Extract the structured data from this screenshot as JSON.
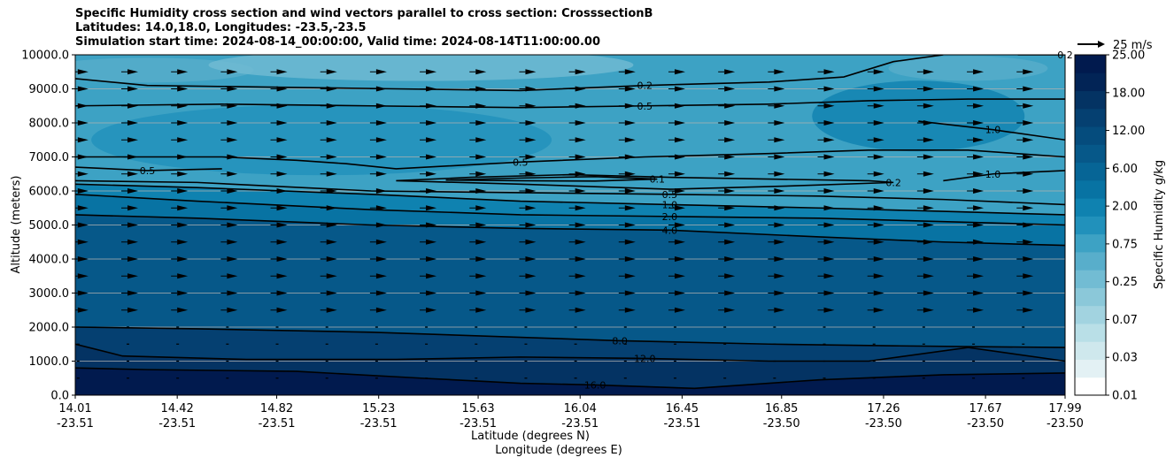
{
  "chart_data": {
    "type": "contour",
    "title_lines": [
      "Specific Humidity cross section and wind vectors parallel to cross section: CrosssectionB",
      "Latitudes: 14.0,18.0, Longitudes: -23.5,-23.5",
      "Simulation start time: 2024-08-14_00:00:00, Valid time: 2024-08-14T11:00:00.00"
    ],
    "xlabel_lat": "Latitude (degrees N)",
    "xlabel_lon": "Longitude (degrees E)",
    "ylabel": "Altitude (meters)",
    "x_lat_ticks": [
      "14.01",
      "14.42",
      "14.82",
      "15.23",
      "15.63",
      "16.04",
      "16.45",
      "16.85",
      "17.26",
      "17.67",
      "17.99"
    ],
    "x_lon_ticks": [
      "-23.51",
      "-23.51",
      "-23.51",
      "-23.51",
      "-23.51",
      "-23.51",
      "-23.51",
      "-23.50",
      "-23.50",
      "-23.50",
      "-23.50"
    ],
    "xlim": [
      14.01,
      17.99
    ],
    "ylim": [
      0,
      10000
    ],
    "y_ticks": [
      "0.0",
      "1000.0",
      "2000.0",
      "3000.0",
      "4000.0",
      "5000.0",
      "6000.0",
      "7000.0",
      "8000.0",
      "9000.0",
      "10000.0"
    ],
    "y_tick_values": [
      0,
      1000,
      2000,
      3000,
      4000,
      5000,
      6000,
      7000,
      8000,
      9000,
      10000
    ],
    "grid": "horizontal",
    "colorbar": {
      "label": "Specific Humidity g/kg",
      "tick_labels": [
        "0.01",
        "0.03",
        "0.07",
        "0.25",
        "0.75",
        "2.00",
        "6.00",
        "12.00",
        "18.00",
        "25.00"
      ],
      "levels": [
        0.01,
        0.02,
        0.03,
        0.05,
        0.07,
        0.1,
        0.25,
        0.5,
        0.75,
        1.0,
        2.0,
        4.0,
        6.0,
        8.0,
        12.0,
        16.0,
        18.0,
        20.0,
        25.0
      ],
      "colors": [
        "#ffffff",
        "#e3f1f4",
        "#cfe8ed",
        "#b9dfe7",
        "#a2d3e0",
        "#8bc8d9",
        "#72bcd3",
        "#58aecb",
        "#3da2c4",
        "#2191bb",
        "#0f82b0",
        "#0873a3",
        "#066596",
        "#065889",
        "#054c7d",
        "#054071",
        "#043363",
        "#022456",
        "#011a4e"
      ]
    },
    "quiver_key": "25 m/s",
    "contours": [
      {
        "label": "16.0",
        "level": 16.0,
        "points": [
          [
            14.01,
            800
          ],
          [
            14.3,
            750
          ],
          [
            14.9,
            700
          ],
          [
            15.4,
            500
          ],
          [
            15.8,
            350
          ],
          [
            16.1,
            300
          ],
          [
            16.5,
            200
          ],
          [
            17.0,
            450
          ],
          [
            17.5,
            600
          ],
          [
            17.99,
            650
          ]
        ]
      },
      {
        "label": "12.0",
        "level": 12.0,
        "points": [
          [
            14.01,
            1500
          ],
          [
            14.2,
            1150
          ],
          [
            14.7,
            1050
          ],
          [
            15.3,
            1050
          ],
          [
            15.8,
            1120
          ],
          [
            16.3,
            1080
          ],
          [
            16.8,
            1000
          ],
          [
            17.2,
            1000
          ],
          [
            17.6,
            1400
          ],
          [
            17.99,
            1000
          ]
        ]
      },
      {
        "label": "8.0",
        "level": 8.0,
        "points": [
          [
            14.01,
            2000
          ],
          [
            14.5,
            1950
          ],
          [
            15.2,
            1850
          ],
          [
            15.8,
            1700
          ],
          [
            16.2,
            1600
          ],
          [
            16.8,
            1500
          ],
          [
            17.3,
            1450
          ],
          [
            17.99,
            1400
          ]
        ]
      },
      {
        "label": "4.0",
        "level": 4.0,
        "points": [
          [
            14.01,
            5300
          ],
          [
            14.5,
            5200
          ],
          [
            15.2,
            5000
          ],
          [
            15.8,
            4900
          ],
          [
            16.4,
            4850
          ],
          [
            17.0,
            4650
          ],
          [
            17.5,
            4500
          ],
          [
            17.99,
            4400
          ]
        ]
      },
      {
        "label": "2.0",
        "level": 2.0,
        "points": [
          [
            14.01,
            5900
          ],
          [
            14.5,
            5700
          ],
          [
            15.2,
            5450
          ],
          [
            15.8,
            5300
          ],
          [
            16.4,
            5250
          ],
          [
            17.0,
            5200
          ],
          [
            17.5,
            5100
          ],
          [
            17.99,
            5000
          ]
        ]
      },
      {
        "label": "1.0",
        "level": 1.0,
        "points": [
          [
            14.01,
            6200
          ],
          [
            14.5,
            6100
          ],
          [
            15.2,
            5900
          ],
          [
            15.8,
            5700
          ],
          [
            16.4,
            5600
          ],
          [
            17.0,
            5500
          ],
          [
            17.5,
            5400
          ],
          [
            17.99,
            5300
          ]
        ]
      },
      {
        "label": "0.5",
        "level": 0.5,
        "points": [
          [
            14.01,
            6300
          ],
          [
            14.5,
            6250
          ],
          [
            15.2,
            6000
          ],
          [
            15.8,
            5950
          ],
          [
            16.4,
            5900
          ],
          [
            17.0,
            5850
          ],
          [
            17.5,
            5750
          ],
          [
            17.99,
            5600
          ]
        ]
      },
      {
        "label": "0.2",
        "level": 0.2,
        "points": [
          [
            15.3,
            6300
          ],
          [
            15.6,
            6400
          ],
          [
            16.0,
            6480
          ],
          [
            16.4,
            6400
          ],
          [
            16.8,
            6350
          ],
          [
            17.2,
            6300
          ],
          [
            17.3,
            6250
          ],
          [
            16.9,
            6150
          ],
          [
            16.4,
            6050
          ],
          [
            15.8,
            6200
          ],
          [
            15.4,
            6280
          ],
          [
            15.3,
            6300
          ]
        ]
      },
      {
        "label": "0.1",
        "level": 0.1,
        "points": [
          [
            15.5,
            6320
          ],
          [
            15.8,
            6380
          ],
          [
            16.1,
            6420
          ],
          [
            16.35,
            6350
          ],
          [
            16.1,
            6290
          ],
          [
            15.8,
            6300
          ],
          [
            15.5,
            6320
          ]
        ]
      },
      {
        "label": "0.5",
        "level": 0.5,
        "points": [
          [
            14.01,
            7000
          ],
          [
            14.6,
            7000
          ],
          [
            14.9,
            6900
          ],
          [
            15.1,
            6800
          ],
          [
            15.3,
            6650
          ],
          [
            15.8,
            6850
          ],
          [
            16.3,
            7000
          ],
          [
            16.8,
            7100
          ],
          [
            17.2,
            7200
          ],
          [
            17.6,
            7200
          ],
          [
            17.99,
            7000
          ]
        ]
      },
      {
        "label": "0.5",
        "level": 0.5,
        "points": [
          [
            14.01,
            6700
          ],
          [
            14.3,
            6600
          ],
          [
            14.6,
            6650
          ]
        ]
      },
      {
        "label": "1.0",
        "level": 1.0,
        "points": [
          [
            17.4,
            8050
          ],
          [
            17.7,
            7800
          ],
          [
            17.99,
            7500
          ]
        ]
      },
      {
        "label": "1.0",
        "level": 1.0,
        "points": [
          [
            17.5,
            6300
          ],
          [
            17.7,
            6500
          ],
          [
            17.99,
            6600
          ]
        ]
      },
      {
        "label": "0.5",
        "level": 0.5,
        "points": [
          [
            14.01,
            8500
          ],
          [
            14.6,
            8550
          ],
          [
            15.2,
            8500
          ],
          [
            15.8,
            8450
          ],
          [
            16.3,
            8500
          ],
          [
            16.8,
            8550
          ],
          [
            17.2,
            8650
          ],
          [
            17.6,
            8700
          ],
          [
            17.99,
            8700
          ]
        ]
      },
      {
        "label": "0.2",
        "level": 0.2,
        "points": [
          [
            14.01,
            9300
          ],
          [
            14.3,
            9100
          ],
          [
            14.8,
            9050
          ],
          [
            15.3,
            9000
          ],
          [
            15.8,
            8950
          ],
          [
            16.3,
            9100
          ],
          [
            16.8,
            9200
          ],
          [
            17.1,
            9350
          ],
          [
            17.3,
            9800
          ],
          [
            17.5,
            10000
          ]
        ]
      },
      {
        "label": "0.2",
        "level": 0.2,
        "points": [
          [
            17.8,
            10000
          ],
          [
            17.99,
            10000
          ]
        ]
      }
    ]
  }
}
